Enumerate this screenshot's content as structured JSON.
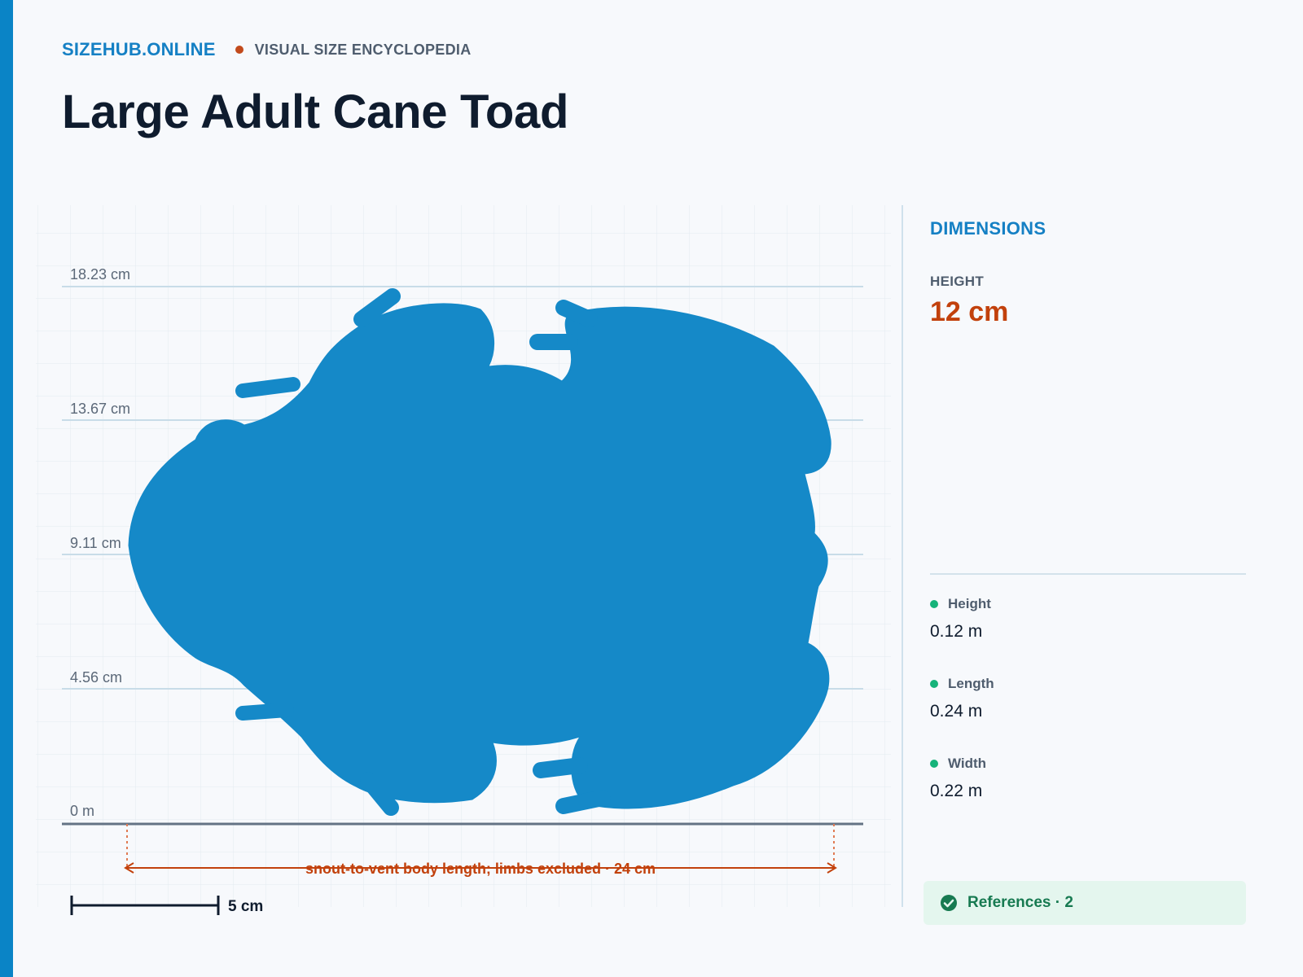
{
  "header": {
    "brand": "SIZEHUB.ONLINE",
    "tagline": "VISUAL SIZE ENCYCLOPEDIA",
    "title": "Large Adult Cane Toad"
  },
  "figure": {
    "ruler_labels": [
      "18.23 cm",
      "13.67 cm",
      "9.11 cm",
      "4.56 cm",
      "0 m"
    ],
    "length_note": "snout-to-vent body length; limbs excluded · 24 cm",
    "scale_bar_label": "5 cm"
  },
  "panel": {
    "section_title": "DIMENSIONS",
    "primary_label": "HEIGHT",
    "primary_value": "12 cm",
    "metrics": [
      {
        "label": "Height",
        "value": "0.12 m"
      },
      {
        "label": "Length",
        "value": "0.24 m"
      },
      {
        "label": "Width",
        "value": "0.22 m"
      }
    ],
    "references_label": "References · 2"
  },
  "colors": {
    "accent": "#0a84c6",
    "silhouette": "#1589c8",
    "highlight": "#c2410c",
    "status_dot": "#16b37a"
  },
  "icons": {
    "references": "check-circle-icon"
  }
}
